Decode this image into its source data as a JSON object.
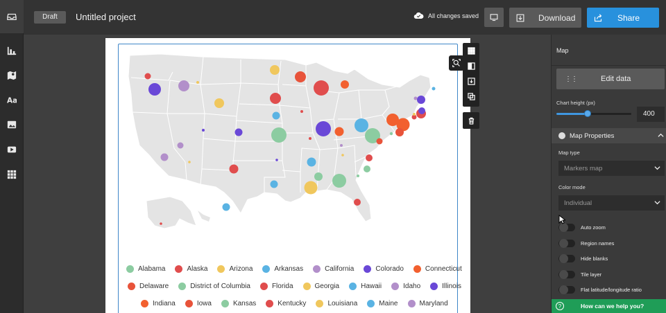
{
  "rail": {
    "icons": [
      "inbox-icon",
      "chart-icon",
      "map-pin-icon",
      "text-icon",
      "image-icon",
      "video-icon",
      "grid-icon"
    ]
  },
  "topbar": {
    "draft_label": "Draft",
    "project_title": "Untitled project",
    "save_status": "All changes saved",
    "download_label": "Download",
    "share_label": "Share"
  },
  "colors": {
    "accent": "#2891dd",
    "help": "#1f9d57",
    "selection_border": "#3e86c8",
    "map_land": "#e4e4e4"
  },
  "legend": {
    "items": [
      {
        "label": "Alabama",
        "color": "#8ccca1"
      },
      {
        "label": "Alaska",
        "color": "#e04d4d"
      },
      {
        "label": "Arizona",
        "color": "#f0c75d"
      },
      {
        "label": "Arkansas",
        "color": "#5ab3e3"
      },
      {
        "label": "California",
        "color": "#b28fca"
      },
      {
        "label": "Colorado",
        "color": "#6a48d7"
      },
      {
        "label": "Connecticut",
        "color": "#f2602f"
      },
      {
        "label": "Delaware",
        "color": "#e8533a"
      },
      {
        "label": "District of Columbia",
        "color": "#8ccca1"
      },
      {
        "label": "Florida",
        "color": "#e04d4d"
      },
      {
        "label": "Georgia",
        "color": "#f0c75d"
      },
      {
        "label": "Hawaii",
        "color": "#5ab3e3"
      },
      {
        "label": "Idaho",
        "color": "#b28fca"
      },
      {
        "label": "Illinois",
        "color": "#6a48d7"
      },
      {
        "label": "Indiana",
        "color": "#f2602f"
      },
      {
        "label": "Iowa",
        "color": "#e8533a"
      },
      {
        "label": "Kansas",
        "color": "#8ccca1"
      },
      {
        "label": "Kentucky",
        "color": "#e04d4d"
      },
      {
        "label": "Louisiana",
        "color": "#f0c75d"
      },
      {
        "label": "Maine",
        "color": "#5ab3e3"
      },
      {
        "label": "Maryland",
        "color": "#b28fca"
      }
    ]
  },
  "panel": {
    "title": "Map",
    "edit_data_label": "Edit data",
    "chart_height_label": "Chart height (px)",
    "chart_height_value": "400",
    "chart_height_slider_fraction": 0.42,
    "section_title": "Map Properties",
    "map_type_label": "Map type",
    "map_type_value": "Markers map",
    "color_mode_label": "Color mode",
    "color_mode_value": "Individual",
    "toggles": [
      {
        "label": "Auto zoom",
        "on": false
      },
      {
        "label": "Region names",
        "on": false
      },
      {
        "label": "Hide blanks",
        "on": false
      },
      {
        "label": "Tile layer",
        "on": false
      },
      {
        "label": "Flat latitude/longitude ratio",
        "on": false
      }
    ],
    "help_label": "How can we help you?"
  }
}
